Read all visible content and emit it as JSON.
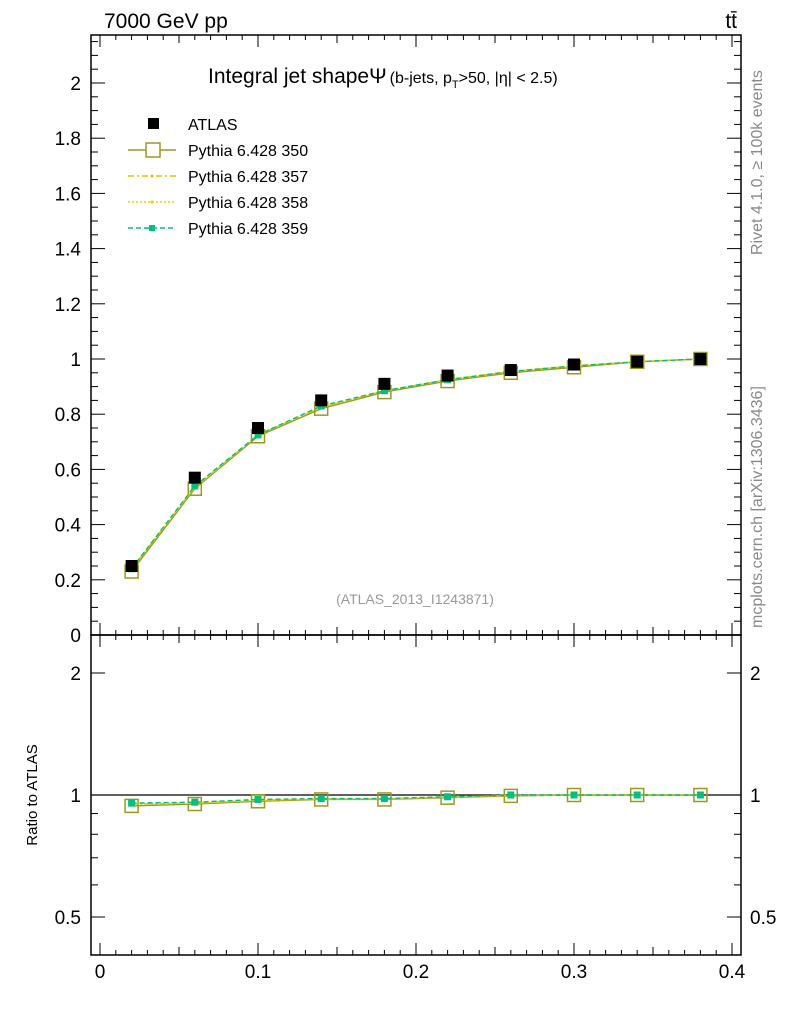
{
  "header": {
    "left": "7000 GeV pp",
    "right": "tt̄"
  },
  "side_labels": {
    "rivet": "Rivet 4.1.0, ≥ 100k events",
    "mcplots": "mcplots.cern.ch [arXiv:1306.3436]"
  },
  "chart_data": [
    {
      "type": "line",
      "title": "Integral jet shape Ψ (b-jets, pT>50, |η| < 2.5)",
      "title_main": "Integral jet shapeΨ",
      "title_sub": "(b-jets, p",
      "title_sub_t": "T",
      "title_sub_rest": ">50, |η| < 2.5)",
      "annotation": "(ATLAS_2013_I1243871)",
      "xlim": [
        0,
        0.4
      ],
      "ylim": [
        0,
        2.15
      ],
      "yticks": [
        "0",
        "0.2",
        "0.4",
        "0.6",
        "0.8",
        "1",
        "1.2",
        "1.4",
        "1.6",
        "1.8",
        "2"
      ],
      "ytick_values": [
        0,
        0.2,
        0.4,
        0.6,
        0.8,
        1,
        1.2,
        1.4,
        1.6,
        1.8,
        2
      ],
      "x": [
        0.02,
        0.06,
        0.1,
        0.14,
        0.18,
        0.22,
        0.26,
        0.3,
        0.34,
        0.38
      ],
      "legend_position": "top-left",
      "series": [
        {
          "name": "ATLAS",
          "color": "#000000",
          "values": [
            0.25,
            0.57,
            0.75,
            0.85,
            0.91,
            0.94,
            0.96,
            0.98,
            0.99,
            1.0
          ]
        },
        {
          "name": "Pythia 6.428 350",
          "color": "#9a9a1e",
          "values": [
            0.23,
            0.53,
            0.72,
            0.82,
            0.88,
            0.92,
            0.95,
            0.97,
            0.99,
            1.0
          ]
        },
        {
          "name": "Pythia 6.428 357",
          "color": "#e0c000",
          "values": [
            0.24,
            0.535,
            0.725,
            0.825,
            0.885,
            0.925,
            0.955,
            0.975,
            0.99,
            1.0
          ]
        },
        {
          "name": "Pythia 6.428 358",
          "color": "#d8d800",
          "values": [
            0.24,
            0.535,
            0.725,
            0.825,
            0.885,
            0.925,
            0.955,
            0.975,
            0.99,
            1.0
          ]
        },
        {
          "name": "Pythia 6.428 359",
          "color": "#00c080",
          "values": [
            0.24,
            0.54,
            0.725,
            0.83,
            0.885,
            0.925,
            0.955,
            0.975,
            0.99,
            1.0
          ]
        }
      ]
    },
    {
      "type": "line",
      "ylabel": "Ratio to ATLAS",
      "yscale": "log",
      "ylim": [
        0.42,
        2.35
      ],
      "yticks": [
        "0.5",
        "1",
        "2"
      ],
      "ytick_values": [
        0.5,
        1,
        2
      ],
      "xticks": [
        "0",
        "0.1",
        "0.2",
        "0.3",
        "0.4"
      ],
      "xtick_values": [
        0,
        0.1,
        0.2,
        0.3,
        0.4
      ],
      "x": [
        0.02,
        0.06,
        0.1,
        0.14,
        0.18,
        0.22,
        0.26,
        0.3,
        0.34,
        0.38
      ],
      "series": [
        {
          "name": "Pythia 6.428 350",
          "color": "#9a9a1e",
          "values": [
            0.94,
            0.95,
            0.965,
            0.975,
            0.975,
            0.985,
            0.995,
            1.0,
            1.0,
            1.0
          ]
        },
        {
          "name": "Pythia 6.428 357",
          "color": "#e0c000",
          "values": [
            0.95,
            0.955,
            0.97,
            0.978,
            0.978,
            0.988,
            0.998,
            1.0,
            1.0,
            1.0
          ]
        },
        {
          "name": "Pythia 6.428 358",
          "color": "#d8d800",
          "values": [
            0.95,
            0.955,
            0.97,
            0.978,
            0.978,
            0.988,
            0.998,
            1.0,
            1.0,
            1.0
          ]
        },
        {
          "name": "Pythia 6.428 359",
          "color": "#00c080",
          "values": [
            0.955,
            0.96,
            0.975,
            0.98,
            0.98,
            0.99,
            1.0,
            1.0,
            1.0,
            1.0
          ]
        }
      ]
    }
  ]
}
